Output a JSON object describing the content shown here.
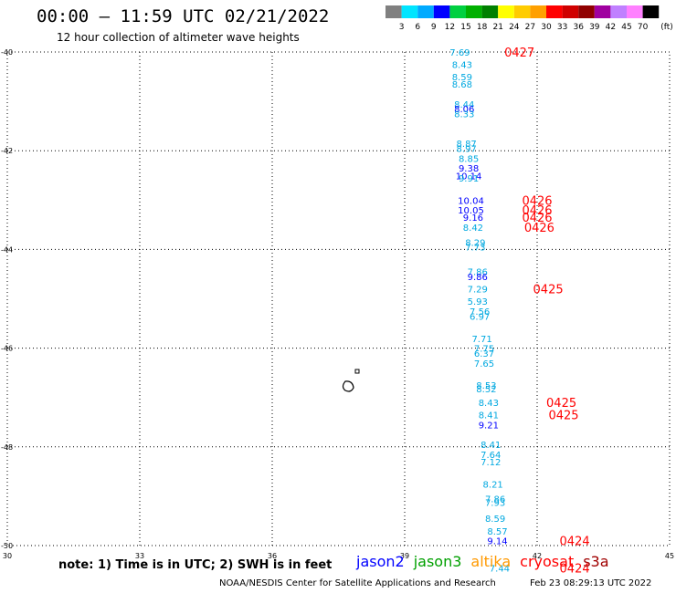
{
  "header": {
    "title": "00:00 – 11:59 UTC 02/21/2022",
    "subtitle": "12 hour collection of altimeter wave heights"
  },
  "colorbar": {
    "labels": [
      "3",
      "6",
      "9",
      "12",
      "15",
      "18",
      "21",
      "24",
      "27",
      "30",
      "33",
      "36",
      "39",
      "42",
      "45",
      "70"
    ],
    "units": "(ft)",
    "colors": [
      "#808080",
      "#00e5ff",
      "#00aaff",
      "#0000ff",
      "#00d040",
      "#00b000",
      "#008000",
      "#ffff00",
      "#ffcc00",
      "#ffa000",
      "#ff0000",
      "#d00000",
      "#900000",
      "#a000a0",
      "#c080ff",
      "#ff80ff",
      "#000000"
    ]
  },
  "footer": {
    "note": "note: 1) Time is in UTC; 2) SWH is in feet",
    "credit": "NOAA/NESDIS Center for Satellite Applications and Research",
    "timestamp": "Feb 23 08:29:13 UTC 2022",
    "satellites": [
      {
        "name": "jason2",
        "color": "#0000ff"
      },
      {
        "name": "jason3",
        "color": "#00a000"
      },
      {
        "name": "altika",
        "color": "#ff9900"
      },
      {
        "name": "cryosat",
        "color": "#ff0000"
      },
      {
        "name": "s3a",
        "color": "#a00000"
      }
    ]
  },
  "chart_data": {
    "type": "scatter",
    "xlim": [
      30,
      45
    ],
    "ylim": [
      -50,
      -40
    ],
    "xticks": [
      "30",
      "33",
      "36",
      "39",
      "42",
      "45"
    ],
    "yticks": [
      "-40",
      "-42",
      "-44",
      "-46",
      "-48",
      "-50"
    ],
    "grid": true,
    "series": [
      {
        "name": "jason2",
        "color": "#0000ff"
      },
      {
        "name": "s3a",
        "color": "#00a8e0"
      }
    ],
    "points": [
      {
        "lon": 40.25,
        "lat": -40.0,
        "text": "7.69",
        "color": "#00a8e0"
      },
      {
        "lon": 40.3,
        "lat": -40.25,
        "text": "8.43",
        "color": "#00a8e0"
      },
      {
        "lon": 40.3,
        "lat": -40.5,
        "text": "8.59",
        "color": "#00a8e0"
      },
      {
        "lon": 40.3,
        "lat": -40.65,
        "text": "8.68",
        "color": "#00a8e0"
      },
      {
        "lon": 40.35,
        "lat": -41.05,
        "text": "8.44",
        "color": "#00a8e0"
      },
      {
        "lon": 40.35,
        "lat": -41.15,
        "text": "8.06",
        "color": "#0000ff"
      },
      {
        "lon": 40.35,
        "lat": -41.25,
        "text": "8.33",
        "color": "#00a8e0"
      },
      {
        "lon": 40.4,
        "lat": -41.85,
        "text": "8.87",
        "color": "#00a8e0"
      },
      {
        "lon": 40.4,
        "lat": -41.95,
        "text": "8.97",
        "color": "#00a8e0"
      },
      {
        "lon": 40.45,
        "lat": -42.15,
        "text": "8.85",
        "color": "#00a8e0"
      },
      {
        "lon": 40.45,
        "lat": -42.35,
        "text": "9.38",
        "color": "#0000ff"
      },
      {
        "lon": 40.45,
        "lat": -42.5,
        "text": "10.14",
        "color": "#0000ff"
      },
      {
        "lon": 40.45,
        "lat": -42.55,
        "text": "9.91",
        "color": "#00a8e0"
      },
      {
        "lon": 40.5,
        "lat": -43.0,
        "text": "10.04",
        "color": "#0000ff"
      },
      {
        "lon": 40.5,
        "lat": -43.2,
        "text": "10.05",
        "color": "#0000ff"
      },
      {
        "lon": 40.55,
        "lat": -43.35,
        "text": "9.16",
        "color": "#0000ff"
      },
      {
        "lon": 40.55,
        "lat": -43.55,
        "text": "8.42",
        "color": "#00a8e0"
      },
      {
        "lon": 40.6,
        "lat": -43.85,
        "text": "8.29",
        "color": "#00a8e0"
      },
      {
        "lon": 40.6,
        "lat": -43.95,
        "text": "7.73",
        "color": "#00a8e0"
      },
      {
        "lon": 40.65,
        "lat": -44.45,
        "text": "7.86",
        "color": "#00a8e0"
      },
      {
        "lon": 40.65,
        "lat": -44.55,
        "text": "9.86",
        "color": "#0000ff"
      },
      {
        "lon": 40.65,
        "lat": -44.8,
        "text": "7.29",
        "color": "#00a8e0"
      },
      {
        "lon": 40.65,
        "lat": -45.05,
        "text": "5.93",
        "color": "#00a8e0"
      },
      {
        "lon": 40.7,
        "lat": -45.25,
        "text": "7.56",
        "color": "#00a8e0"
      },
      {
        "lon": 40.7,
        "lat": -45.35,
        "text": "6.97",
        "color": "#00a8e0"
      },
      {
        "lon": 40.75,
        "lat": -45.8,
        "text": "7.71",
        "color": "#00a8e0"
      },
      {
        "lon": 40.8,
        "lat": -46.0,
        "text": "7.75",
        "color": "#00a8e0"
      },
      {
        "lon": 40.8,
        "lat": -46.1,
        "text": "6.37",
        "color": "#00a8e0"
      },
      {
        "lon": 40.8,
        "lat": -46.3,
        "text": "7.65",
        "color": "#00a8e0"
      },
      {
        "lon": 40.85,
        "lat": -46.75,
        "text": "8.53",
        "color": "#00a8e0"
      },
      {
        "lon": 40.85,
        "lat": -46.82,
        "text": "8.52",
        "color": "#00a8e0"
      },
      {
        "lon": 40.9,
        "lat": -47.1,
        "text": "8.43",
        "color": "#00a8e0"
      },
      {
        "lon": 40.9,
        "lat": -47.35,
        "text": "8.41",
        "color": "#00a8e0"
      },
      {
        "lon": 40.9,
        "lat": -47.55,
        "text": "9.21",
        "color": "#0000ff"
      },
      {
        "lon": 40.95,
        "lat": -47.95,
        "text": "8.41",
        "color": "#00a8e0"
      },
      {
        "lon": 40.95,
        "lat": -48.15,
        "text": "7.64",
        "color": "#00a8e0"
      },
      {
        "lon": 40.95,
        "lat": -48.3,
        "text": "7.12",
        "color": "#00a8e0"
      },
      {
        "lon": 41.0,
        "lat": -48.75,
        "text": "8.21",
        "color": "#00a8e0"
      },
      {
        "lon": 41.05,
        "lat": -49.05,
        "text": "7.86",
        "color": "#00a8e0"
      },
      {
        "lon": 41.05,
        "lat": -49.12,
        "text": "7.93",
        "color": "#00a8e0"
      },
      {
        "lon": 41.05,
        "lat": -49.45,
        "text": "8.59",
        "color": "#00a8e0"
      },
      {
        "lon": 41.1,
        "lat": -49.7,
        "text": "8.57",
        "color": "#00a8e0"
      },
      {
        "lon": 41.1,
        "lat": -49.9,
        "text": "9.14",
        "color": "#0000ff"
      },
      {
        "lon": 41.15,
        "lat": -50.45,
        "text": "7.44",
        "color": "#00a8e0"
      }
    ],
    "time_labels": [
      {
        "lon": 41.6,
        "lat": -40.0,
        "text": "0427"
      },
      {
        "lon": 42.0,
        "lat": -43.0,
        "text": "0426"
      },
      {
        "lon": 42.0,
        "lat": -43.2,
        "text": "0426"
      },
      {
        "lon": 42.0,
        "lat": -43.35,
        "text": "0426"
      },
      {
        "lon": 42.05,
        "lat": -43.55,
        "text": "0426"
      },
      {
        "lon": 42.25,
        "lat": -44.8,
        "text": "0425"
      },
      {
        "lon": 42.55,
        "lat": -47.1,
        "text": "0425"
      },
      {
        "lon": 42.6,
        "lat": -47.35,
        "text": "0425"
      },
      {
        "lon": 42.85,
        "lat": -49.9,
        "text": "0424"
      },
      {
        "lon": 42.85,
        "lat": -50.45,
        "text": "0424"
      }
    ]
  }
}
